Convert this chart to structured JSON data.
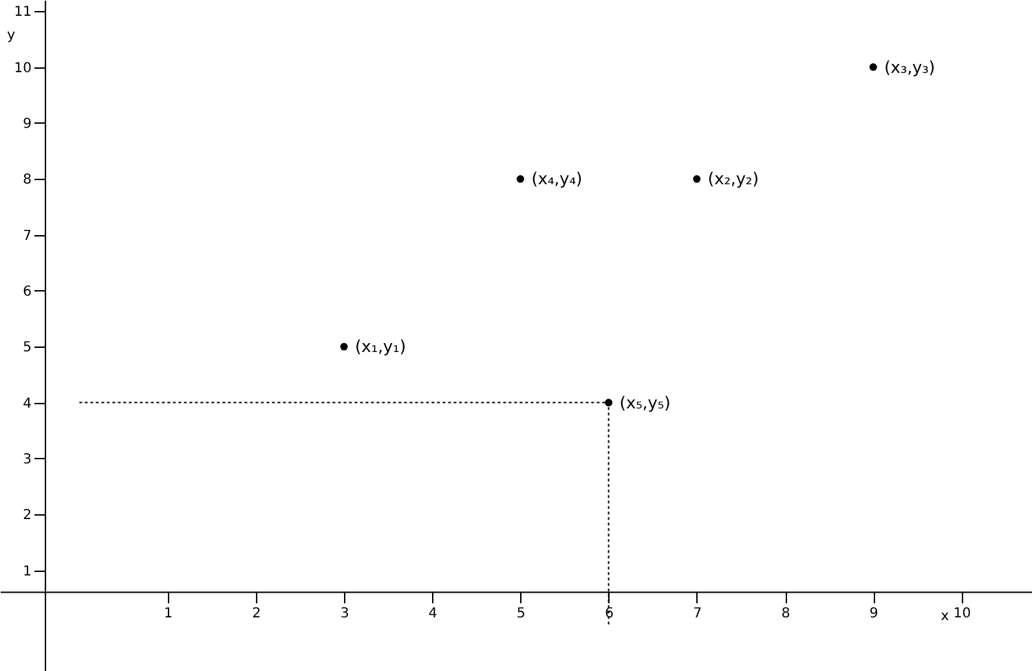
{
  "chart_data": {
    "type": "scatter",
    "xlabel": "x",
    "ylabel": "y",
    "xlim": [
      -0.9,
      10.8
    ],
    "ylim": [
      -0.8,
      11.2
    ],
    "xticks": [
      1,
      2,
      3,
      4,
      5,
      6,
      7,
      8,
      9,
      10
    ],
    "yticks": [
      1,
      2,
      3,
      4,
      5,
      6,
      7,
      8,
      9,
      10,
      11
    ],
    "grid": false,
    "marker": "circle",
    "series": [
      {
        "type": "line",
        "color": "#000000",
        "line_style": "dotted",
        "marker": "none",
        "x": [
          0,
          6,
          6
        ],
        "values": [
          4,
          4,
          0
        ]
      },
      {
        "color": "#000000",
        "x": [
          3,
          7,
          9,
          5,
          6
        ],
        "values": [
          5,
          8,
          10,
          8,
          4
        ]
      }
    ],
    "annotations": [
      {
        "text": "(x₁,y₁)",
        "x": 3,
        "y": 5
      },
      {
        "text": "(x₂,y₂)",
        "x": 7,
        "y": 8
      },
      {
        "text": "(x₃,y₃)",
        "x": 9,
        "y": 10
      },
      {
        "text": "(x₄,y₄)",
        "x": 5,
        "y": 8
      },
      {
        "text": "(x₅,y₅)",
        "x": 6,
        "y": 4
      }
    ]
  }
}
